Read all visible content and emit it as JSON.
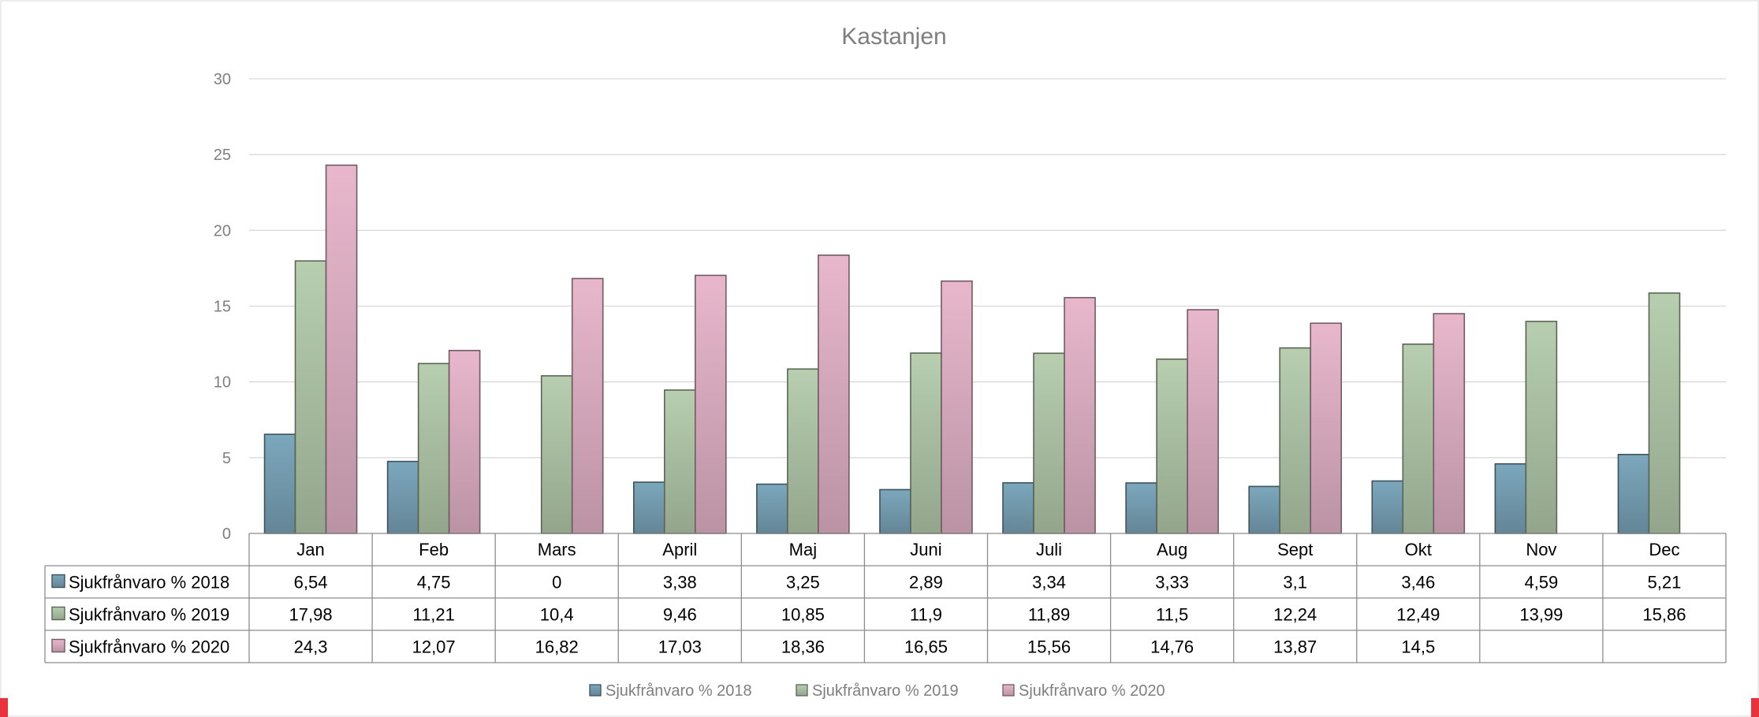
{
  "chart_data": {
    "type": "bar",
    "title": "Kastanjen",
    "categories": [
      "Jan",
      "Feb",
      "Mars",
      "April",
      "Maj",
      "Juni",
      "Juli",
      "Aug",
      "Sept",
      "Okt",
      "Nov",
      "Dec"
    ],
    "series": [
      {
        "name": "Sjukfrånvaro % 2018",
        "color": "#6f95a8",
        "values": [
          6.54,
          4.75,
          0,
          3.38,
          3.25,
          2.89,
          3.34,
          3.33,
          3.1,
          3.46,
          4.59,
          5.21
        ],
        "labels": [
          "6,54",
          "4,75",
          "0",
          "3,38",
          "3,25",
          "2,89",
          "3,34",
          "3,33",
          "3,1",
          "3,46",
          "4,59",
          "5,21"
        ]
      },
      {
        "name": "Sjukfrånvaro % 2019",
        "color": "#a3b89c",
        "values": [
          17.98,
          11.21,
          10.4,
          9.46,
          10.85,
          11.9,
          11.89,
          11.5,
          12.24,
          12.49,
          13.99,
          15.86
        ],
        "labels": [
          "17,98",
          "11,21",
          "10,4",
          "9,46",
          "10,85",
          "11,9",
          "11,89",
          "11,5",
          "12,24",
          "12,49",
          "13,99",
          "15,86"
        ]
      },
      {
        "name": "Sjukfrånvaro % 2020",
        "color": "#cfa3b6",
        "values": [
          24.3,
          12.07,
          16.82,
          17.03,
          18.36,
          16.65,
          15.56,
          14.76,
          13.87,
          14.5,
          null,
          null
        ],
        "labels": [
          "24,3",
          "12,07",
          "16,82",
          "17,03",
          "18,36",
          "16,65",
          "15,56",
          "14,76",
          "13,87",
          "14,5",
          "",
          ""
        ]
      }
    ],
    "ylim": [
      0,
      30
    ],
    "yticks": [
      0,
      5,
      10,
      15,
      20,
      25,
      30
    ],
    "grid": true,
    "legend": "bottom",
    "data_table": true
  }
}
